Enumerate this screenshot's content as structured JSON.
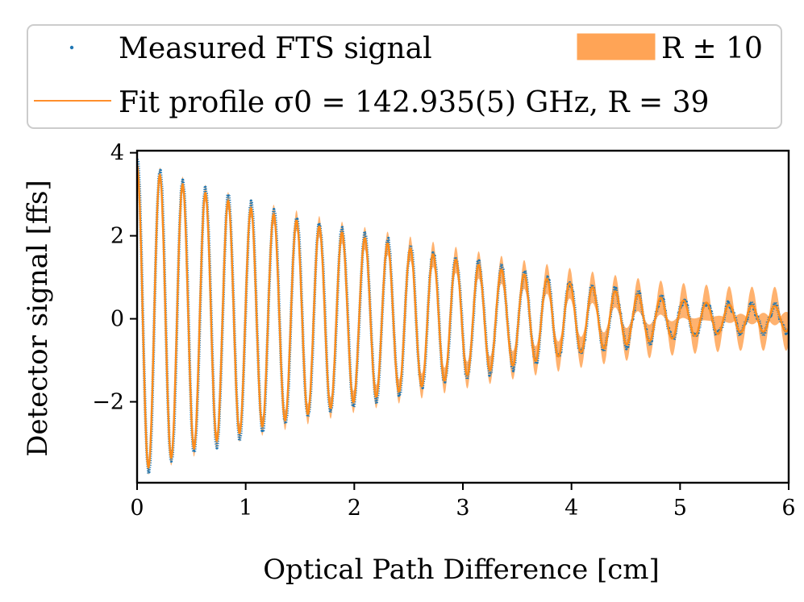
{
  "chart_data": {
    "type": "line",
    "title": "",
    "xlabel": "Optical Path Difference [cm]",
    "ylabel": "Detector signal [ffs]",
    "xlim": [
      0,
      6
    ],
    "ylim": [
      -3.95,
      4.05
    ],
    "grid": false,
    "legend_position": "top",
    "xticks": [
      {
        "value": 0,
        "label": "0"
      },
      {
        "value": 1,
        "label": "1"
      },
      {
        "value": 2,
        "label": "2"
      },
      {
        "value": 3,
        "label": "3"
      },
      {
        "value": 4,
        "label": "4"
      },
      {
        "value": 5,
        "label": "5"
      },
      {
        "value": 6,
        "label": "6"
      }
    ],
    "yticks": [
      {
        "value": 4,
        "label": "4"
      },
      {
        "value": 2,
        "label": "2"
      },
      {
        "value": 0,
        "label": "0"
      },
      {
        "value": -2,
        "label": "−2"
      }
    ],
    "legend": {
      "measured": "Measured FTS signal",
      "band": "R ± 10",
      "fit": "Fit profile σ0 = 142.935(5) GHz, R = 39"
    },
    "model": {
      "sigma0_GHz": 142.935,
      "R": 39,
      "R_band": 10,
      "period_cm": 0.2097,
      "amplitude": 3.7,
      "sample_count": 1200
    },
    "envelope": {
      "x": [
        0,
        0.5,
        1,
        1.5,
        2,
        2.5,
        3,
        3.5,
        4,
        4.5,
        5,
        5.5,
        6
      ],
      "values": [
        3.7,
        3.15,
        2.7,
        2.35,
        2.0,
        1.7,
        1.38,
        1.1,
        0.85,
        0.62,
        0.45,
        0.33,
        0.3
      ]
    },
    "series": [
      {
        "name": "Measured FTS signal",
        "style": "points",
        "color": "#1f77b4"
      },
      {
        "name": "Fit profile",
        "style": "line",
        "color": "#ff7f0e"
      },
      {
        "name": "R ± 10",
        "style": "band",
        "color": "#ffa456"
      }
    ]
  }
}
